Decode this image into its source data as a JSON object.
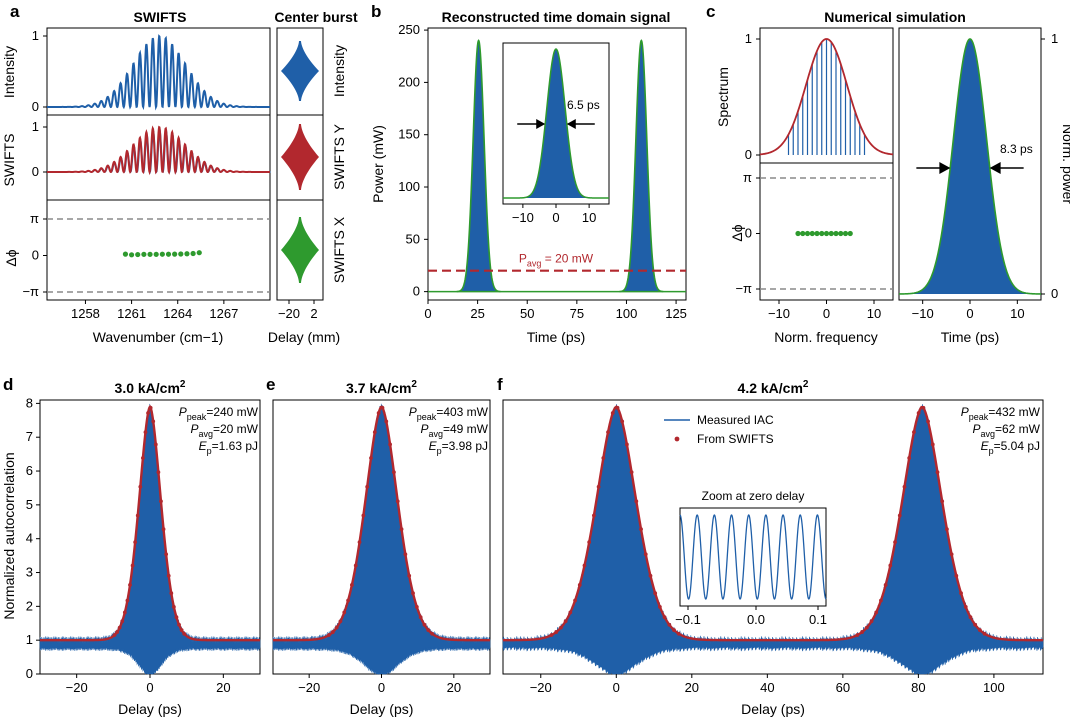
{
  "panel_labels": {
    "a": "a",
    "b": "b",
    "c": "c",
    "d": "d",
    "e": "e",
    "f": "f"
  },
  "colors": {
    "blue": "#1f5fa8",
    "red": "#b2282e",
    "green": "#2e9a2e",
    "grey": "#8a8a8a"
  },
  "chart_data": [
    {
      "id": "a",
      "type": "line",
      "title": "SWIFTS",
      "side_title": "Center burst",
      "xlabel": "Wavenumber (cm−1)",
      "xlim": [
        1255.5,
        1270
      ],
      "xticks": [
        "1258",
        "1261",
        "1264",
        "1267"
      ],
      "subplots": [
        {
          "ylabel": "Intensity",
          "ylim": [
            0,
            1
          ],
          "yticks": [
            "0",
            "1"
          ],
          "center_wavenumber": 1262.8,
          "fringe_spacing": 0.42,
          "envelope_width": 1.7,
          "peak": 1.0
        },
        {
          "ylabel": "SWIFTS",
          "ylim": [
            0,
            1
          ],
          "yticks": [
            "0",
            "1"
          ],
          "center_wavenumber": 1262.8,
          "fringe_spacing": 0.42,
          "envelope_width": 1.7,
          "peak": 1.0
        },
        {
          "ylabel": "Δϕ",
          "yticks": [
            "π",
            "0",
            "−π"
          ],
          "phase_points_x": [
            1260.6,
            1261.0,
            1261.4,
            1261.8,
            1262.2,
            1262.6,
            1263.0,
            1263.4,
            1263.8,
            1264.2,
            1264.6,
            1265.0,
            1265.4
          ],
          "phase_points_y": [
            0.12,
            0.06,
            0.08,
            0.1,
            0.1,
            0.1,
            0.11,
            0.11,
            0.12,
            0.13,
            0.15,
            0.17,
            0.24
          ]
        }
      ],
      "center_burst": {
        "xlabel": "Delay (mm)",
        "xticks": [
          "−20",
          "2"
        ],
        "labels": [
          "Intensity",
          "SWIFTS Y",
          "SWIFTS X"
        ]
      }
    },
    {
      "id": "b",
      "type": "line",
      "title": "Reconstructed time domain signal",
      "xlabel": "Time (ps)",
      "ylabel": "Power (mW)",
      "xlim": [
        0,
        130
      ],
      "ylim": [
        -8,
        252
      ],
      "xticks": [
        0,
        25,
        50,
        75,
        100,
        125
      ],
      "yticks": [
        0,
        50,
        100,
        150,
        200,
        250
      ],
      "pulses": [
        {
          "center": 25.5,
          "peak": 240,
          "fwhm": 6.5
        },
        {
          "center": 107.5,
          "peak": 240,
          "fwhm": 6.5
        }
      ],
      "pavg_line": 20,
      "pavg_label": "P",
      "pavg_sub": "avg",
      "pavg_value": " = 20 mW",
      "inset": {
        "xlim": [
          -16,
          16
        ],
        "xticks": [
          "−10",
          "0",
          "10"
        ],
        "fwhm_label": "6.5 ps"
      }
    },
    {
      "id": "c",
      "type": "line",
      "title": "Numerical simulation",
      "left": {
        "ylabel_top": "Spectrum",
        "ylabel_bottom": "Δϕ",
        "xlabel": "Norm. frequency",
        "xlim": [
          -14,
          14
        ],
        "xticks": [
          "−10",
          "0",
          "10"
        ],
        "yticks_top": [
          "0",
          "1"
        ],
        "yticks_bottom": [
          "π",
          "0",
          "−π"
        ],
        "spectrum_sigma": 4.3,
        "mode_positions": [
          -8,
          -7,
          -6,
          -5,
          -4,
          -3,
          -2,
          -1,
          0,
          1,
          2,
          3,
          4,
          5,
          6,
          7,
          8
        ],
        "phase_points_x": [
          -6,
          -5,
          -4,
          -3,
          -2,
          -1,
          0,
          1,
          2,
          3,
          4,
          5
        ],
        "phase_points_y": [
          0,
          0,
          0,
          0,
          0,
          0,
          0,
          0,
          0,
          0,
          0,
          0
        ]
      },
      "right": {
        "ylabel": "Norm. power",
        "xlabel": "Time (ps)",
        "xlim": [
          -15,
          15
        ],
        "xticks": [
          "−10",
          "0",
          "10"
        ],
        "yticks": [
          "1",
          "0"
        ],
        "fwhm": 8.3,
        "fwhm_label": "8.3 ps"
      }
    },
    {
      "id": "d",
      "type": "area",
      "title": "3.0 kA/cm",
      "title_sup": "2",
      "xlabel": "Delay (ps)",
      "ylabel": "Normalized autocorrelation",
      "xlim": [
        -30,
        30
      ],
      "ylim": [
        0,
        8.1
      ],
      "xticks": [
        "−20",
        "0",
        "20"
      ],
      "yticks": [
        "0",
        "1",
        "2",
        "3",
        "4",
        "5",
        "6",
        "7",
        "8"
      ],
      "centers": [
        0
      ],
      "envelope_width": 4.4,
      "stats": [
        {
          "sym": "P",
          "sub": "peak",
          "value": "=240 mW"
        },
        {
          "sym": "P",
          "sub": "avg",
          "value": "=20 mW"
        },
        {
          "sym": "E",
          "sub": "p",
          "value": "=1.63 pJ"
        }
      ]
    },
    {
      "id": "e",
      "type": "area",
      "title": "3.7 kA/cm",
      "title_sup": "2",
      "xlabel": "Delay (ps)",
      "xlim": [
        -30,
        30
      ],
      "ylim": [
        0,
        8.1
      ],
      "xticks": [
        "−20",
        "0",
        "20"
      ],
      "centers": [
        0
      ],
      "envelope_width": 6.6,
      "stats": [
        {
          "sym": "P",
          "sub": "peak",
          "value": "=403 mW"
        },
        {
          "sym": "P",
          "sub": "avg",
          "value": "=49 mW"
        },
        {
          "sym": "E",
          "sub": "p",
          "value": "=3.98 pJ"
        }
      ]
    },
    {
      "id": "f",
      "type": "area",
      "title": "4.2 kA/cm",
      "title_sup": "2",
      "xlabel": "Delay (ps)",
      "xlim": [
        -30,
        113
      ],
      "ylim": [
        0,
        8.1
      ],
      "xticks": [
        "−20",
        "0",
        "20",
        "40",
        "60",
        "80",
        "100"
      ],
      "centers": [
        0,
        81
      ],
      "envelope_width": 7.8,
      "legend": [
        "Measured IAC",
        "From SWIFTS"
      ],
      "inset": {
        "title": "Zoom at zero delay",
        "xticks": [
          "−0.1",
          "0.0",
          "0.1"
        ],
        "cycles": 8.5
      },
      "stats": [
        {
          "sym": "P",
          "sub": "peak",
          "value": "=432 mW"
        },
        {
          "sym": "P",
          "sub": "avg",
          "value": "=62 mW"
        },
        {
          "sym": "E",
          "sub": "p",
          "value": "=5.04 pJ"
        }
      ]
    }
  ]
}
